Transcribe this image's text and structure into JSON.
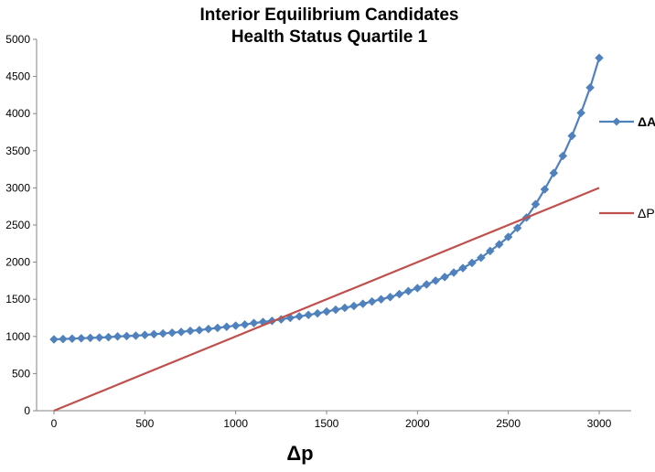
{
  "chart_data": {
    "type": "line",
    "title_lines": [
      "Interior Equilibrium Candidates",
      "Health Status Quartile 1"
    ],
    "xlabel": "Δp",
    "ylabel": "",
    "xlim": [
      0,
      3000
    ],
    "ylim": [
      0,
      5000
    ],
    "x_ticks": [
      0,
      500,
      1000,
      1500,
      2000,
      2500,
      3000
    ],
    "y_ticks": [
      0,
      500,
      1000,
      1500,
      2000,
      2500,
      3000,
      3500,
      4000,
      4500,
      5000
    ],
    "grid": false,
    "legend_position": "right",
    "series": [
      {
        "name": "ΔAC",
        "color": "#4F81BD",
        "marker": "diamond",
        "x": [
          0,
          50,
          100,
          150,
          200,
          250,
          300,
          350,
          400,
          450,
          500,
          550,
          600,
          650,
          700,
          750,
          800,
          850,
          900,
          950,
          1000,
          1050,
          1100,
          1150,
          1200,
          1250,
          1300,
          1350,
          1400,
          1450,
          1500,
          1550,
          1600,
          1650,
          1700,
          1750,
          1800,
          1850,
          1900,
          1950,
          2000,
          2050,
          2100,
          2150,
          2200,
          2250,
          2300,
          2350,
          2400,
          2450,
          2500,
          2550,
          2600,
          2650,
          2700,
          2750,
          2800,
          2850,
          2900,
          2950,
          3000
        ],
        "y": [
          960,
          965,
          970,
          975,
          980,
          985,
          990,
          1000,
          1005,
          1010,
          1020,
          1030,
          1040,
          1050,
          1060,
          1075,
          1085,
          1100,
          1115,
          1130,
          1145,
          1160,
          1180,
          1195,
          1210,
          1230,
          1250,
          1270,
          1290,
          1310,
          1335,
          1360,
          1385,
          1410,
          1440,
          1470,
          1500,
          1530,
          1570,
          1610,
          1650,
          1700,
          1750,
          1800,
          1860,
          1920,
          1990,
          2060,
          2150,
          2240,
          2340,
          2460,
          2600,
          2780,
          2980,
          3200,
          3430,
          3700,
          4010,
          4350,
          4750
        ]
      },
      {
        "name": "ΔP",
        "color": "#C0504D",
        "marker": "none",
        "x": [
          0,
          3000
        ],
        "y": [
          0,
          3000
        ]
      }
    ]
  }
}
